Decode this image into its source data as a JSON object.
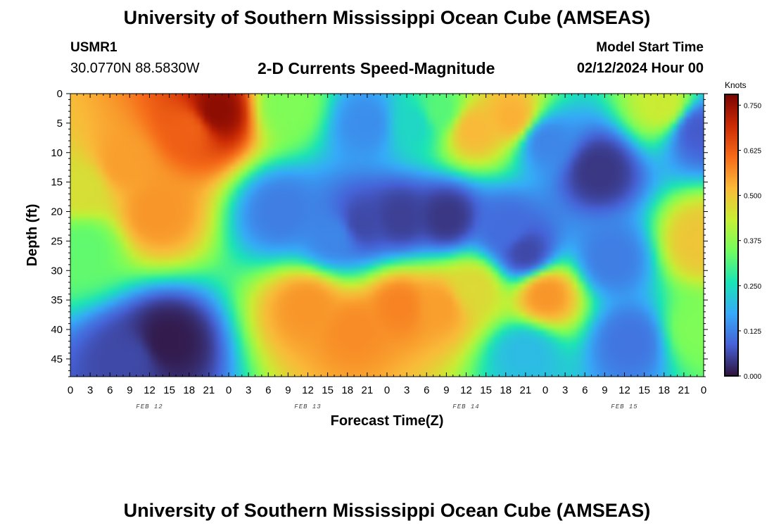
{
  "page": {
    "title": "University of Southern Mississippi Ocean Cube (AMSEAS)",
    "footer_title": "University of Southern Mississippi Ocean Cube (AMSEAS)",
    "station_name": "USMR1",
    "coordinates": "30.0770N  88.5830W",
    "plot_title": "2-D Currents Speed-Magnitude",
    "model_start_label": "Model Start Time",
    "model_start_value": "02/12/2024 Hour 00"
  },
  "chart_data": {
    "type": "heatmap",
    "title": "2-D Currents Speed-Magnitude",
    "xlabel": "Forecast Time(Z)",
    "ylabel": "Depth (ft)",
    "x_tick_labels": [
      "0",
      "3",
      "6",
      "9",
      "12",
      "15",
      "18",
      "21",
      "0",
      "3",
      "6",
      "9",
      "12",
      "15",
      "18",
      "21",
      "0",
      "3",
      "6",
      "9",
      "12",
      "15",
      "18",
      "21",
      "0",
      "3",
      "6",
      "9",
      "12",
      "15",
      "18",
      "21",
      "0"
    ],
    "x_range_hours": [
      0,
      96
    ],
    "date_labels": [
      {
        "label": "FEB 12",
        "hour": 12
      },
      {
        "label": "FEB 13",
        "hour": 36
      },
      {
        "label": "FEB 14",
        "hour": 60
      },
      {
        "label": "FEB 15",
        "hour": 84
      }
    ],
    "y_ticks": [
      0,
      5,
      10,
      15,
      20,
      25,
      30,
      35,
      40,
      45
    ],
    "y_range": [
      0,
      48
    ],
    "y_inverted": true,
    "colorbar": {
      "unit": "Knots",
      "ticks": [
        "0.000",
        "0.125",
        "0.250",
        "0.375",
        "0.500",
        "0.625",
        "0.750"
      ],
      "range": [
        0,
        0.78
      ]
    },
    "colormap": [
      "#30123b",
      "#4662d7",
      "#36aaf9",
      "#1ae4b6",
      "#72fe5e",
      "#c7ef34",
      "#faba39",
      "#f66b19",
      "#cb2a04",
      "#7a0403"
    ],
    "features": [
      {
        "hour": 8,
        "depth": 12,
        "speed": 0.55
      },
      {
        "hour": 18,
        "depth": 6,
        "speed": 0.62
      },
      {
        "hour": 22,
        "depth": 3,
        "speed": 0.76
      },
      {
        "hour": 13,
        "depth": 20,
        "speed": 0.56
      },
      {
        "hour": 2,
        "depth": 16,
        "speed": 0.46
      },
      {
        "hour": 2,
        "depth": 26,
        "speed": 0.33
      },
      {
        "hour": 14.5,
        "depth": 42,
        "speed": 0.01
      },
      {
        "hour": 9,
        "depth": 45,
        "speed": 0.06
      },
      {
        "hour": 33,
        "depth": 2,
        "speed": 0.36
      },
      {
        "hour": 32,
        "depth": 20,
        "speed": 0.12
      },
      {
        "hour": 36,
        "depth": 36,
        "speed": 0.56
      },
      {
        "hour": 43,
        "depth": 40,
        "speed": 0.57
      },
      {
        "hour": 40,
        "depth": 24,
        "speed": 0.13
      },
      {
        "hour": 44,
        "depth": 22,
        "speed": 0.06
      },
      {
        "hour": 45,
        "depth": 5,
        "speed": 0.14
      },
      {
        "hour": 50,
        "depth": 36,
        "speed": 0.58
      },
      {
        "hour": 50,
        "depth": 21,
        "speed": 0.05
      },
      {
        "hour": 52,
        "depth": 5,
        "speed": 0.24
      },
      {
        "hour": 56,
        "depth": 3,
        "speed": 0.32
      },
      {
        "hour": 57,
        "depth": 21,
        "speed": 0.04
      },
      {
        "hour": 56,
        "depth": 36,
        "speed": 0.55
      },
      {
        "hour": 61,
        "depth": 6,
        "speed": 0.52
      },
      {
        "hour": 61,
        "depth": 33,
        "speed": 0.47
      },
      {
        "hour": 67,
        "depth": 4,
        "speed": 0.53
      },
      {
        "hour": 66,
        "depth": 23,
        "speed": 0.1
      },
      {
        "hour": 69,
        "depth": 27,
        "speed": 0.06
      },
      {
        "hour": 69,
        "depth": 44,
        "speed": 0.2
      },
      {
        "hour": 72,
        "depth": 34,
        "speed": 0.56
      },
      {
        "hour": 72,
        "depth": 8,
        "speed": 0.13
      },
      {
        "hour": 80,
        "depth": 13,
        "speed": 0.04
      },
      {
        "hour": 82,
        "depth": 28,
        "speed": 0.12
      },
      {
        "hour": 85,
        "depth": 42,
        "speed": 0.11
      },
      {
        "hour": 90,
        "depth": 2,
        "speed": 0.44
      },
      {
        "hour": 95,
        "depth": 6,
        "speed": 0.08
      },
      {
        "hour": 95.5,
        "depth": 25,
        "speed": 0.5
      },
      {
        "hour": 95,
        "depth": 40,
        "speed": 0.36
      }
    ]
  }
}
